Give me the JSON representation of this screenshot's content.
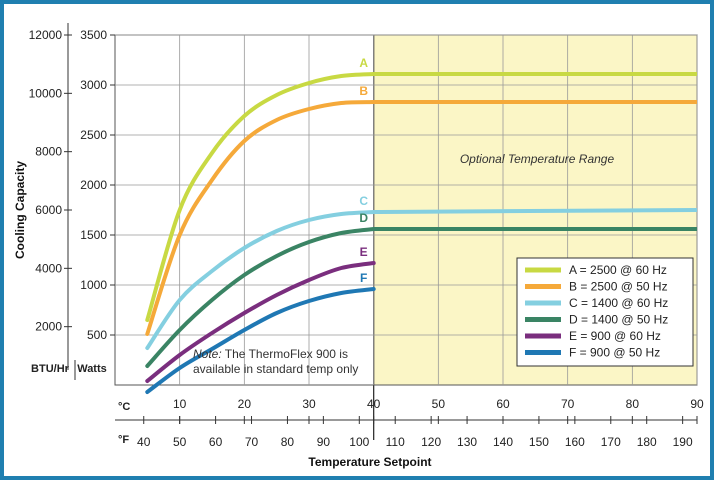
{
  "chart_data": {
    "type": "line",
    "title": "",
    "xlabel": "Temperature Setpoint",
    "ylabel": "Cooling Capacity",
    "x_unit_c": "°C",
    "x_unit_f": "°F",
    "y_unit_btu": "BTU/Hr",
    "y_unit_watts": "Watts",
    "xlim_c": [
      0,
      90
    ],
    "ylim_watts": [
      0,
      3500
    ],
    "ylim_btu": [
      0,
      12000
    ],
    "x_ticks_c": [
      10,
      20,
      30,
      40,
      50,
      60,
      70,
      80,
      90
    ],
    "x_ticks_f": [
      40,
      50,
      60,
      70,
      80,
      90,
      100,
      110,
      120,
      130,
      140,
      150,
      160,
      170,
      180,
      190
    ],
    "y_ticks_watts": [
      500,
      1000,
      1500,
      2000,
      2500,
      3000,
      3500
    ],
    "y_ticks_btu": [
      2000,
      4000,
      6000,
      8000,
      10000,
      12000
    ],
    "grid": true,
    "legend_position": "lower-right",
    "optional_range": {
      "from_c": 40,
      "to_c": 90,
      "label": "Optional Temperature Range",
      "color": "#fbf6c6"
    },
    "note": {
      "prefix": "Note:",
      "line1": " The ThermoFlex 900 is",
      "line2": "available in standard temp only"
    },
    "series": [
      {
        "id": "A",
        "name": "A = 2500 @ 60 Hz",
        "color": "#c8d943",
        "x": [
          5,
          10,
          15,
          20,
          25,
          30,
          35,
          40,
          90
        ],
        "y": [
          650,
          1750,
          2320,
          2690,
          2900,
          3020,
          3090,
          3110,
          3110
        ]
      },
      {
        "id": "B",
        "name": "B = 2500 @ 50 Hz",
        "color": "#f5a93a",
        "x": [
          5,
          10,
          15,
          20,
          25,
          30,
          35,
          40,
          90
        ],
        "y": [
          510,
          1500,
          2050,
          2440,
          2650,
          2760,
          2820,
          2830,
          2830
        ]
      },
      {
        "id": "C",
        "name": "C = 1400 @ 60 Hz",
        "color": "#84cfe0",
        "x": [
          5,
          10,
          15,
          20,
          25,
          30,
          35,
          40,
          90
        ],
        "y": [
          370,
          850,
          1140,
          1370,
          1540,
          1650,
          1710,
          1730,
          1750
        ]
      },
      {
        "id": "D",
        "name": "D = 1400 @ 50 Hz",
        "color": "#3a8464",
        "x": [
          5,
          10,
          15,
          20,
          25,
          30,
          35,
          40,
          90
        ],
        "y": [
          190,
          550,
          850,
          1100,
          1290,
          1430,
          1520,
          1560,
          1560
        ]
      },
      {
        "id": "E",
        "name": "E = 900 @ 60 Hz",
        "color": "#7a2e7e",
        "x": [
          5,
          10,
          15,
          20,
          25,
          30,
          35,
          40
        ],
        "y": [
          40,
          300,
          520,
          720,
          900,
          1050,
          1170,
          1220
        ]
      },
      {
        "id": "F",
        "name": "F = 900 @ 50 Hz",
        "color": "#1f78b4",
        "x": [
          5,
          10,
          15,
          20,
          25,
          30,
          35,
          40
        ],
        "y": [
          -70,
          170,
          360,
          550,
          720,
          840,
          920,
          960
        ]
      }
    ]
  }
}
